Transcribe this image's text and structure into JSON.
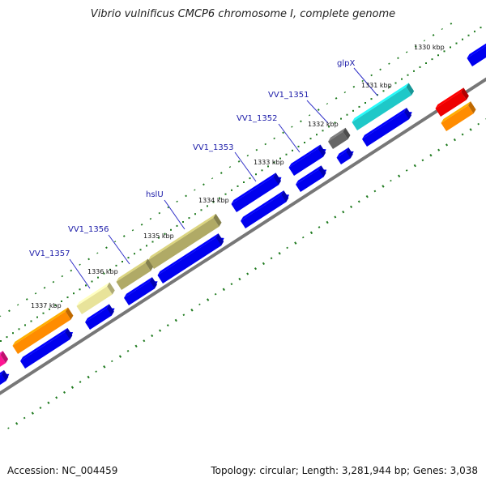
{
  "title": "Vibrio vulnificus CMCP6 chromosome I, complete genome",
  "footer": {
    "accession": "Accession: NC_004459",
    "summary": "Topology: circular; Length: 3,281,944 bp; Genes: 3,038"
  },
  "scale_ticks": [
    "1330 kbp",
    "1331 kbp",
    "1332 kbp",
    "1333 kbp",
    "1334 kbp",
    "1335 kbp",
    "1336 kbp",
    "1337 kbp"
  ],
  "gene_labels": [
    "glpX",
    "VV1_1351",
    "VV1_1352",
    "VV1_1353",
    "hslU",
    "VV1_1356",
    "VV1_1357"
  ],
  "colors": {
    "cds": "#0000ee",
    "backbone": "#777777",
    "gc_dots": "#1e7a1e",
    "label": "#1a1aa8",
    "feature_cyan": "#1ec8c8",
    "feature_olive": "#b0aa66",
    "feature_khaki": "#e8e39a",
    "feature_orange": "#ff8c00",
    "feature_red": "#ee0000",
    "feature_gray": "#666666",
    "feature_pink": "#ff1493"
  }
}
